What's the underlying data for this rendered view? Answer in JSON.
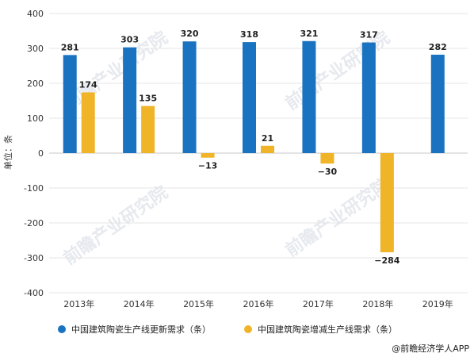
{
  "chart_data": {
    "type": "bar",
    "categories": [
      "2013年",
      "2014年",
      "2015年",
      "2016年",
      "2017年",
      "2018年",
      "2019年"
    ],
    "series": [
      {
        "name": "中国建筑陶瓷生产线更新需求（条）",
        "color": "#1a73c1",
        "values": [
          281,
          303,
          320,
          318,
          321,
          317,
          282
        ],
        "labels": [
          "281",
          "303",
          "320",
          "318",
          "321",
          "317",
          "282"
        ]
      },
      {
        "name": "中国建筑陶瓷增减生产线需求（条）",
        "color": "#f0b429",
        "values": [
          174,
          135,
          -13,
          21,
          -30,
          -284,
          null
        ],
        "labels": [
          "174",
          "135",
          "−13",
          "21",
          "−30",
          "−284",
          ""
        ]
      }
    ],
    "ylabel": "单位：条",
    "ylim": [
      -400,
      400
    ],
    "yticks": [
      "400",
      "300",
      "200",
      "100",
      "0",
      "-100",
      "-200",
      "-300",
      "-400"
    ],
    "legend_position": "bottom"
  },
  "credit": "@前瞻经济学人APP",
  "watermark": "前瞻产业研究院"
}
